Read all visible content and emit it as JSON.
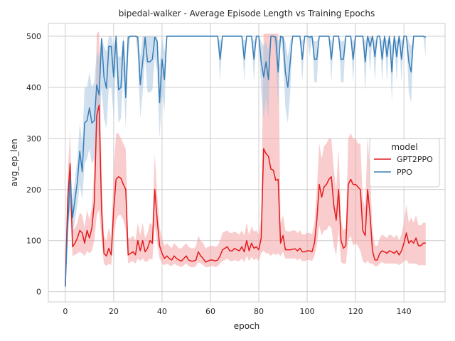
{
  "chart_data": {
    "type": "line",
    "title": "bipedal-walker - Average Episode Length vs Training Epochs",
    "xlabel": "epoch",
    "ylabel": "avg_ep_len",
    "xlim": [
      -7,
      157
    ],
    "ylim": [
      -20,
      525
    ],
    "xticks": [
      0,
      20,
      40,
      60,
      80,
      100,
      120,
      140
    ],
    "yticks": [
      0,
      100,
      200,
      300,
      400,
      500
    ],
    "grid": true,
    "legend": {
      "title": "model",
      "placement": "center-right"
    },
    "series": [
      {
        "name": "GPT2PPO",
        "color": "#e41a1c",
        "x": [
          0,
          1,
          2,
          3,
          4,
          5,
          6,
          7,
          8,
          9,
          10,
          11,
          12,
          13,
          14,
          15,
          16,
          17,
          18,
          19,
          20,
          21,
          22,
          23,
          24,
          25,
          26,
          27,
          28,
          29,
          30,
          31,
          32,
          33,
          34,
          35,
          36,
          37,
          38,
          39,
          40,
          41,
          42,
          43,
          44,
          45,
          46,
          47,
          48,
          49,
          50,
          51,
          52,
          53,
          54,
          55,
          56,
          57,
          58,
          59,
          60,
          61,
          62,
          63,
          64,
          65,
          66,
          67,
          68,
          69,
          70,
          71,
          72,
          73,
          74,
          75,
          76,
          77,
          78,
          79,
          80,
          81,
          82,
          83,
          84,
          85,
          86,
          87,
          88,
          89,
          90,
          91,
          92,
          93,
          94,
          95,
          96,
          97,
          98,
          99,
          100,
          101,
          102,
          103,
          104,
          105,
          106,
          107,
          108,
          109,
          110,
          111,
          112,
          113,
          114,
          115,
          116,
          117,
          118,
          119,
          120,
          121,
          122,
          123,
          124,
          125,
          126,
          127,
          128,
          129,
          130,
          131,
          132,
          133,
          134,
          135,
          136,
          137,
          138,
          139,
          140,
          141,
          142,
          143,
          144,
          145,
          146,
          147,
          148,
          149
        ],
        "y": [
          10,
          180,
          250,
          88,
          95,
          105,
          120,
          115,
          95,
          120,
          105,
          125,
          175,
          345,
          365,
          160,
          75,
          70,
          85,
          72,
          160,
          220,
          225,
          222,
          210,
          200,
          72,
          75,
          78,
          72,
          100,
          80,
          100,
          78,
          85,
          100,
          95,
          200,
          140,
          90,
          75,
          65,
          70,
          65,
          62,
          70,
          65,
          62,
          60,
          65,
          70,
          62,
          60,
          60,
          62,
          78,
          70,
          65,
          58,
          60,
          62,
          62,
          60,
          62,
          70,
          82,
          85,
          88,
          80,
          80,
          85,
          82,
          80,
          88,
          78,
          100,
          80,
          95,
          85,
          88,
          82,
          105,
          280,
          270,
          265,
          240,
          238,
          218,
          220,
          95,
          110,
          82,
          82,
          82,
          83,
          84,
          80,
          85,
          78,
          78,
          80,
          80,
          78,
          95,
          140,
          210,
          185,
          205,
          210,
          220,
          225,
          170,
          140,
          200,
          100,
          85,
          90,
          210,
          220,
          210,
          210,
          205,
          200,
          120,
          110,
          200,
          150,
          80,
          62,
          62,
          75,
          80,
          78,
          75,
          80,
          78,
          75,
          80,
          72,
          80,
          95,
          115,
          95,
          100,
          95,
          105,
          90,
          90,
          95,
          95
        ],
        "band_lo": [
          10,
          130,
          160,
          70,
          72,
          75,
          78,
          75,
          70,
          80,
          75,
          80,
          100,
          150,
          160,
          100,
          55,
          50,
          55,
          52,
          100,
          140,
          150,
          150,
          140,
          120,
          55,
          58,
          60,
          55,
          65,
          60,
          65,
          58,
          60,
          65,
          62,
          130,
          95,
          65,
          55,
          52,
          55,
          52,
          50,
          55,
          52,
          50,
          48,
          52,
          55,
          50,
          48,
          48,
          50,
          58,
          55,
          52,
          48,
          48,
          50,
          50,
          48,
          50,
          55,
          60,
          62,
          65,
          60,
          60,
          62,
          60,
          60,
          65,
          58,
          70,
          60,
          68,
          62,
          65,
          60,
          75,
          80,
          75,
          75,
          70,
          75,
          72,
          75,
          70,
          78,
          65,
          65,
          65,
          65,
          65,
          62,
          65,
          60,
          60,
          62,
          62,
          60,
          70,
          90,
          130,
          110,
          120,
          120,
          130,
          125,
          90,
          70,
          120,
          58,
          55,
          55,
          100,
          110,
          90,
          95,
          90,
          80,
          60,
          55,
          60,
          55,
          55,
          50,
          50,
          55,
          58,
          55,
          55,
          55,
          55,
          55,
          55,
          52,
          55,
          60,
          62,
          55,
          55,
          55,
          55,
          52,
          52,
          52,
          52
        ],
        "band_hi": [
          10,
          230,
          315,
          120,
          125,
          135,
          155,
          150,
          125,
          160,
          140,
          165,
          240,
          505,
          510,
          230,
          110,
          100,
          125,
          105,
          240,
          310,
          310,
          300,
          290,
          280,
          105,
          105,
          110,
          100,
          135,
          110,
          135,
          105,
          115,
          135,
          130,
          270,
          190,
          125,
          105,
          90,
          95,
          90,
          85,
          95,
          90,
          85,
          85,
          90,
          95,
          88,
          85,
          85,
          88,
          110,
          100,
          95,
          85,
          88,
          90,
          90,
          88,
          90,
          100,
          115,
          118,
          120,
          115,
          115,
          118,
          115,
          112,
          120,
          110,
          135,
          110,
          128,
          118,
          120,
          112,
          145,
          505,
          505,
          505,
          505,
          505,
          505,
          505,
          135,
          150,
          120,
          118,
          118,
          120,
          120,
          115,
          120,
          112,
          112,
          115,
          115,
          112,
          135,
          200,
          290,
          260,
          285,
          290,
          300,
          300,
          240,
          200,
          280,
          140,
          120,
          125,
          300,
          310,
          300,
          300,
          290,
          290,
          180,
          165,
          305,
          230,
          120,
          90,
          90,
          105,
          112,
          108,
          105,
          112,
          110,
          105,
          112,
          100,
          112,
          135,
          170,
          135,
          145,
          135,
          150,
          130,
          130,
          135,
          135
        ]
      },
      {
        "name": "PPO",
        "color": "#377eb8",
        "x": [
          0,
          1,
          2,
          3,
          4,
          5,
          6,
          7,
          8,
          9,
          10,
          11,
          12,
          13,
          14,
          15,
          16,
          17,
          18,
          19,
          20,
          21,
          22,
          23,
          24,
          25,
          26,
          27,
          28,
          29,
          30,
          31,
          32,
          33,
          34,
          35,
          36,
          37,
          38,
          39,
          40,
          41,
          42,
          43,
          44,
          45,
          46,
          47,
          48,
          49,
          50,
          51,
          52,
          53,
          54,
          55,
          56,
          57,
          58,
          59,
          60,
          61,
          62,
          63,
          64,
          65,
          66,
          67,
          68,
          69,
          70,
          71,
          72,
          73,
          74,
          75,
          76,
          77,
          78,
          79,
          80,
          81,
          82,
          83,
          84,
          85,
          86,
          87,
          88,
          89,
          90,
          91,
          92,
          93,
          94,
          95,
          96,
          97,
          98,
          99,
          100,
          101,
          102,
          103,
          104,
          105,
          106,
          107,
          108,
          109,
          110,
          111,
          112,
          113,
          114,
          115,
          116,
          117,
          118,
          119,
          120,
          121,
          122,
          123,
          124,
          125,
          126,
          127,
          128,
          129,
          130,
          131,
          132,
          133,
          134,
          135,
          136,
          137,
          138,
          139,
          140,
          141,
          142,
          143,
          144,
          145,
          146,
          147,
          148,
          149
        ],
        "y": [
          10,
          130,
          220,
          145,
          180,
          215,
          275,
          235,
          330,
          335,
          360,
          330,
          335,
          405,
          385,
          495,
          420,
          398,
          480,
          480,
          420,
          500,
          395,
          400,
          490,
          380,
          498,
          500,
          500,
          500,
          498,
          405,
          450,
          498,
          450,
          450,
          455,
          498,
          490,
          370,
          455,
          415,
          500,
          500,
          500,
          500,
          500,
          500,
          500,
          500,
          500,
          500,
          500,
          500,
          500,
          500,
          500,
          500,
          500,
          500,
          500,
          500,
          500,
          500,
          455,
          500,
          500,
          500,
          500,
          500,
          500,
          500,
          500,
          500,
          455,
          500,
          500,
          500,
          455,
          500,
          500,
          450,
          420,
          450,
          415,
          500,
          500,
          498,
          430,
          500,
          498,
          430,
          400,
          450,
          500,
          500,
          500,
          500,
          455,
          500,
          500,
          498,
          500,
          455,
          455,
          500,
          500,
          500,
          500,
          500,
          455,
          500,
          500,
          500,
          455,
          455,
          500,
          500,
          500,
          455,
          500,
          500,
          500,
          500,
          450,
          500,
          480,
          500,
          460,
          500,
          500,
          455,
          500,
          460,
          500,
          430,
          500,
          460,
          500,
          455,
          500,
          500,
          450,
          430,
          500,
          500,
          500,
          500,
          500,
          498
        ],
        "band_lo": [
          10,
          100,
          170,
          110,
          140,
          170,
          210,
          180,
          250,
          260,
          280,
          250,
          260,
          330,
          300,
          400,
          340,
          320,
          400,
          400,
          340,
          450,
          330,
          340,
          420,
          320,
          460,
          500,
          500,
          500,
          460,
          340,
          390,
          460,
          390,
          390,
          395,
          460,
          430,
          300,
          390,
          350,
          500,
          500,
          500,
          500,
          500,
          500,
          500,
          500,
          500,
          500,
          500,
          500,
          500,
          500,
          500,
          500,
          500,
          500,
          500,
          500,
          500,
          500,
          410,
          500,
          500,
          500,
          500,
          500,
          500,
          500,
          500,
          500,
          410,
          500,
          500,
          500,
          410,
          500,
          500,
          390,
          340,
          380,
          340,
          500,
          500,
          460,
          360,
          500,
          460,
          360,
          330,
          390,
          500,
          500,
          500,
          500,
          410,
          500,
          500,
          460,
          500,
          410,
          410,
          500,
          500,
          500,
          500,
          500,
          410,
          500,
          500,
          500,
          410,
          410,
          500,
          500,
          500,
          410,
          500,
          500,
          500,
          500,
          390,
          500,
          430,
          500,
          410,
          500,
          500,
          410,
          500,
          410,
          500,
          370,
          500,
          410,
          500,
          410,
          500,
          500,
          390,
          370,
          500,
          500,
          500,
          500,
          500,
          460
        ],
        "band_hi": [
          10,
          160,
          260,
          180,
          220,
          260,
          330,
          290,
          400,
          400,
          430,
          400,
          410,
          470,
          460,
          500,
          480,
          470,
          500,
          500,
          480,
          500,
          460,
          460,
          500,
          440,
          500,
          500,
          500,
          500,
          500,
          460,
          500,
          500,
          500,
          500,
          500,
          500,
          500,
          440,
          500,
          470,
          500,
          500,
          500,
          500,
          500,
          500,
          500,
          500,
          500,
          500,
          500,
          500,
          500,
          500,
          500,
          500,
          500,
          500,
          500,
          500,
          500,
          500,
          490,
          500,
          500,
          500,
          500,
          500,
          500,
          500,
          500,
          500,
          490,
          500,
          500,
          500,
          490,
          500,
          500,
          490,
          480,
          490,
          470,
          500,
          500,
          500,
          490,
          500,
          500,
          490,
          460,
          490,
          500,
          500,
          500,
          500,
          490,
          500,
          500,
          500,
          500,
          490,
          490,
          500,
          500,
          500,
          500,
          500,
          490,
          500,
          500,
          500,
          490,
          490,
          500,
          500,
          500,
          490,
          500,
          500,
          500,
          500,
          490,
          500,
          500,
          500,
          490,
          500,
          500,
          490,
          500,
          490,
          500,
          480,
          500,
          490,
          500,
          490,
          500,
          500,
          490,
          480,
          500,
          500,
          500,
          500,
          500,
          500
        ]
      }
    ]
  }
}
